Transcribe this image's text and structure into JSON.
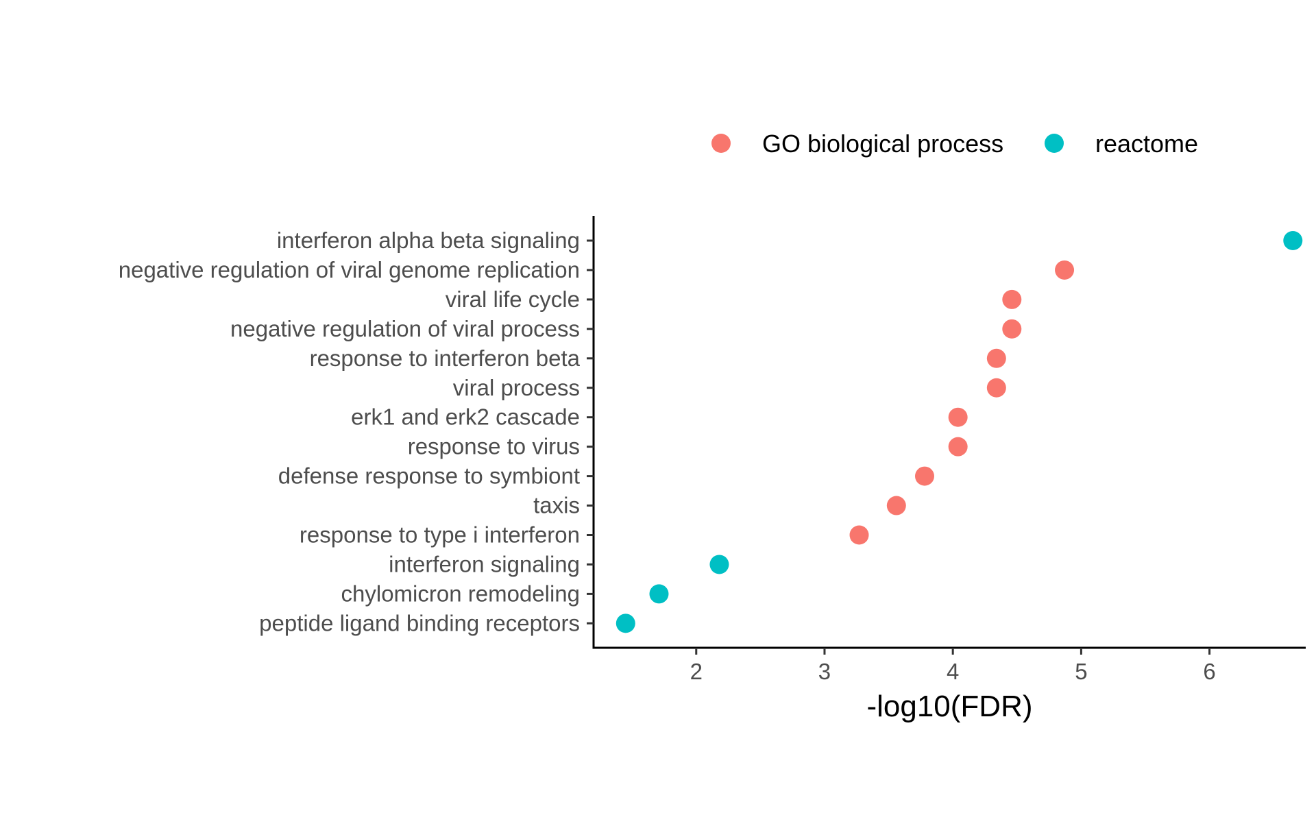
{
  "chart_data": {
    "type": "scatter",
    "title": "",
    "xlabel": "-log10(FDR)",
    "ylabel": "",
    "xlim": [
      1.2,
      6.75
    ],
    "xticks": [
      2,
      3,
      4,
      5,
      6
    ],
    "grid": false,
    "legend_position": "top",
    "categories": [
      "interferon alpha beta signaling",
      "negative regulation of viral genome replication",
      "viral life cycle",
      "negative regulation of viral process",
      "response to interferon beta",
      "viral process",
      "erk1 and erk2 cascade",
      "response to virus",
      "defense response to symbiont",
      "taxis",
      "response to type i interferon",
      "interferon signaling",
      "chylomicron remodeling",
      "peptide ligand binding receptors"
    ],
    "series": [
      {
        "name": "GO biological process",
        "color": "#F8766D",
        "points": [
          {
            "category": "negative regulation of viral genome replication",
            "x": 4.87
          },
          {
            "category": "viral life cycle",
            "x": 4.46
          },
          {
            "category": "negative regulation of viral process",
            "x": 4.46
          },
          {
            "category": "response to interferon beta",
            "x": 4.34
          },
          {
            "category": "viral process",
            "x": 4.34
          },
          {
            "category": "erk1 and erk2 cascade",
            "x": 4.04
          },
          {
            "category": "response to virus",
            "x": 4.04
          },
          {
            "category": "defense response to symbiont",
            "x": 3.78
          },
          {
            "category": "taxis",
            "x": 3.56
          },
          {
            "category": "response to type i interferon",
            "x": 3.27
          }
        ]
      },
      {
        "name": "reactome",
        "color": "#00BFC4",
        "points": [
          {
            "category": "interferon alpha beta signaling",
            "x": 6.65
          },
          {
            "category": "interferon signaling",
            "x": 2.18
          },
          {
            "category": "chylomicron remodeling",
            "x": 1.71
          },
          {
            "category": "peptide ligand binding receptors",
            "x": 1.45
          }
        ]
      }
    ]
  }
}
